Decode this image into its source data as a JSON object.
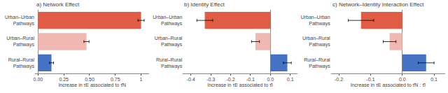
{
  "chart_data": [
    {
      "type": "bar",
      "orientation": "horizontal",
      "title": "a) Network Effect",
      "xlabel": "Increase in τE associated to τ̂N",
      "categories": [
        "Urban–Urban\nPathways",
        "Urban–Rural\nPathways",
        "Rural–Rural\nPathways"
      ],
      "values": [
        1.0,
        0.47,
        0.13
      ],
      "err": [
        0.03,
        0.025,
        0.02
      ],
      "colors": [
        "#E05C45",
        "#F0B8B0",
        "#4472C4"
      ],
      "xlim": [
        -0.03,
        1.08
      ],
      "xticks": [
        {
          "value": 0.0,
          "label": "0.00"
        },
        0.25,
        {
          "value": 0.5,
          "label": "0.50"
        },
        0.75,
        1
      ],
      "grid": false
    },
    {
      "type": "bar",
      "orientation": "horizontal",
      "title": "b) Identity Effect",
      "xlabel": "Increase in τE associated to τ̂I",
      "categories": [
        "Urban–Urban\nPathways",
        "Urban–Rural\nPathways",
        "Rural–Rural\nPathways"
      ],
      "values": [
        -0.33,
        -0.075,
        0.085
      ],
      "err": [
        0.04,
        0.02,
        0.02
      ],
      "colors": [
        "#E05C45",
        "#F0B8B0",
        "#4472C4"
      ],
      "xlim": [
        -0.44,
        0.135
      ],
      "xticks": [
        -0.4,
        -0.3,
        -0.2,
        -0.1,
        {
          "value": 0.0,
          "label": "0.0"
        },
        0.1
      ],
      "grid": false
    },
    {
      "type": "bar",
      "orientation": "horizontal",
      "title": "c) Network–Identity Interaction Effect",
      "xlabel": "Increase in τE associated to τ̂N : τ̂I",
      "categories": [
        "Urban–Urban\nPathways",
        "Urban–Rural\nPathways",
        "Rural–Rural\nPathways"
      ],
      "values": [
        -0.13,
        -0.04,
        0.075
      ],
      "err": [
        0.04,
        0.02,
        0.025
      ],
      "colors": [
        "#E05C45",
        "#F0B8B0",
        "#4472C4"
      ],
      "xlim": [
        -0.225,
        0.135
      ],
      "xticks": [
        -0.2,
        -0.1,
        {
          "value": 0.0,
          "label": "0.0"
        },
        0.1
      ],
      "grid": false
    }
  ]
}
